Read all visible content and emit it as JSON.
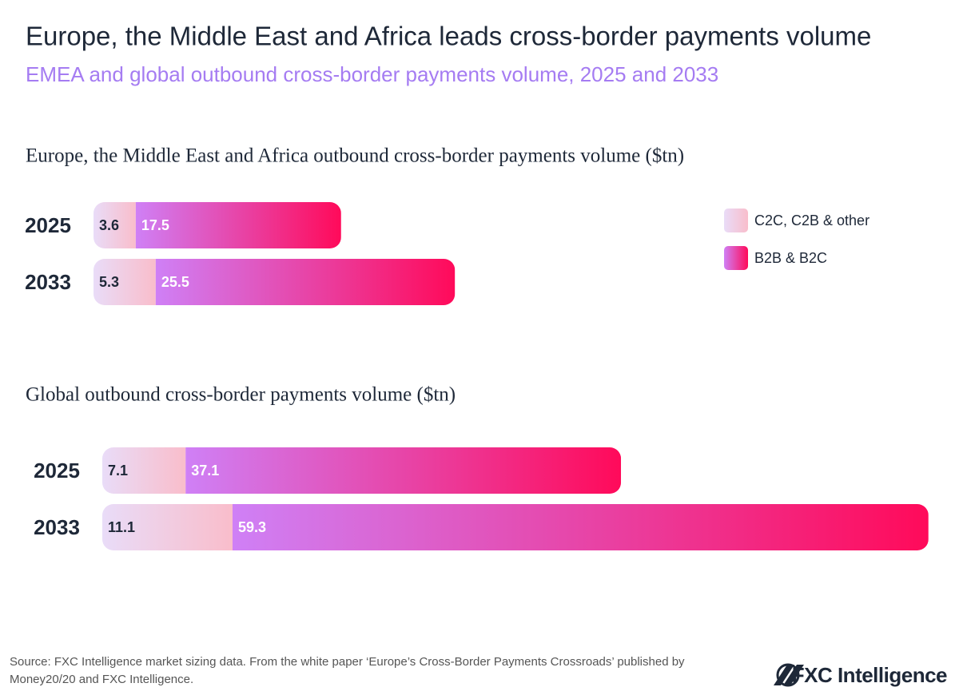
{
  "header": {
    "title": "Europe, the Middle East and Africa leads cross-border payments volume",
    "subtitle": "EMEA and global outbound cross-border payments volume, 2025 and 2033"
  },
  "chart_data": [
    {
      "type": "stacked-bar",
      "title": "Europe, the Middle East and Africa outbound cross-border payments volume ($tn)",
      "categories": [
        "2025",
        "2033"
      ],
      "legend": "top-right",
      "series": [
        {
          "name": "C2C, C2B & other",
          "color": [
            "#e9dcf8",
            "#f9bdcb"
          ],
          "values": [
            3.6,
            5.3
          ]
        },
        {
          "name": "B2B & B2C",
          "color": [
            "#cf80f6",
            "#ff0a5a"
          ],
          "values": [
            17.5,
            25.5
          ]
        }
      ]
    },
    {
      "type": "stacked-bar",
      "title": "Global outbound cross-border payments volume ($tn)",
      "categories": [
        "2025",
        "2033"
      ],
      "series": [
        {
          "color": [
            "#e9dcf8",
            "#f9bdcb"
          ],
          "values": [
            7.1,
            11.1
          ]
        },
        {
          "color": [
            "#cf80f6",
            "#ff0a5a"
          ],
          "values": [
            37.1,
            59.3
          ]
        }
      ]
    }
  ],
  "footer": {
    "source": [
      "Source: FXC Intelligence market sizing data. From the white paper ‘Europe’s Cross-Border Payments Crossroads’ published by",
      "Money20/20 and FXC Intelligence."
    ],
    "logo": "FXC Intelligence"
  }
}
